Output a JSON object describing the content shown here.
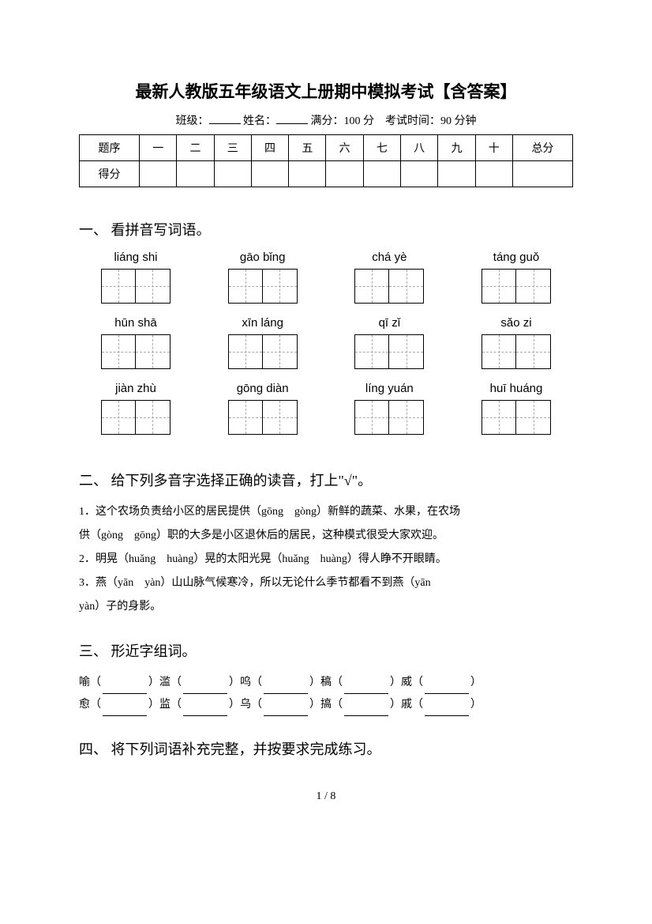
{
  "title": "最新人教版五年级语文上册期中模拟考试【含答案】",
  "info": {
    "class_label": "班级：",
    "name_label": "姓名：",
    "full_score_label": "满分：",
    "full_score_value": "100 分",
    "time_label": "考试时间：",
    "time_value": "90 分钟"
  },
  "score_table": {
    "headers": [
      "题序",
      "一",
      "二",
      "三",
      "四",
      "五",
      "六",
      "七",
      "八",
      "九",
      "十",
      "总分"
    ],
    "row2_label": "得分"
  },
  "section1": {
    "heading": "一、 看拼音写词语。",
    "items": [
      "liáng shi",
      "gāo bǐng",
      "chá yè",
      "táng guǒ",
      "hūn shā",
      "xīn láng",
      "qī zǐ",
      "sǎo zi",
      "jiàn zhù",
      "gōng diàn",
      "líng yuán",
      "huī huáng"
    ]
  },
  "section2": {
    "heading": "二、 给下列多音字选择正确的读音，打上\"√\"。",
    "lines": [
      "1．这个农场负责给小区的居民提供（gōng　gòng）新鲜的蔬菜、水果，在农场",
      "供（gòng　gōng）职的大多是小区退休后的居民，这种模式很受大家欢迎。",
      "2．明晃（huǎng　huàng）晃的太阳光晃（huǎng　huàng）得人睁不开眼睛。",
      "3．燕（yān　yàn）山山脉气候寒冷，所以无论什么季节都看不到燕（yān　",
      "yàn）子的身影。"
    ]
  },
  "section3": {
    "heading": "三、 形近字组词。",
    "rows": [
      [
        "喻（",
        "）滥（",
        "）呜（",
        "）稿（",
        "）威（",
        "）"
      ],
      [
        "愈（",
        "）监（",
        "）乌（",
        "）搞（",
        "）戚（",
        "）"
      ]
    ]
  },
  "section4": {
    "heading": "四、 将下列词语补充完整，并按要求完成练习。"
  },
  "page_num": "1  /  8",
  "colors": {
    "text": "#000000",
    "background": "#ffffff",
    "dashed": "#aaaaaa"
  }
}
